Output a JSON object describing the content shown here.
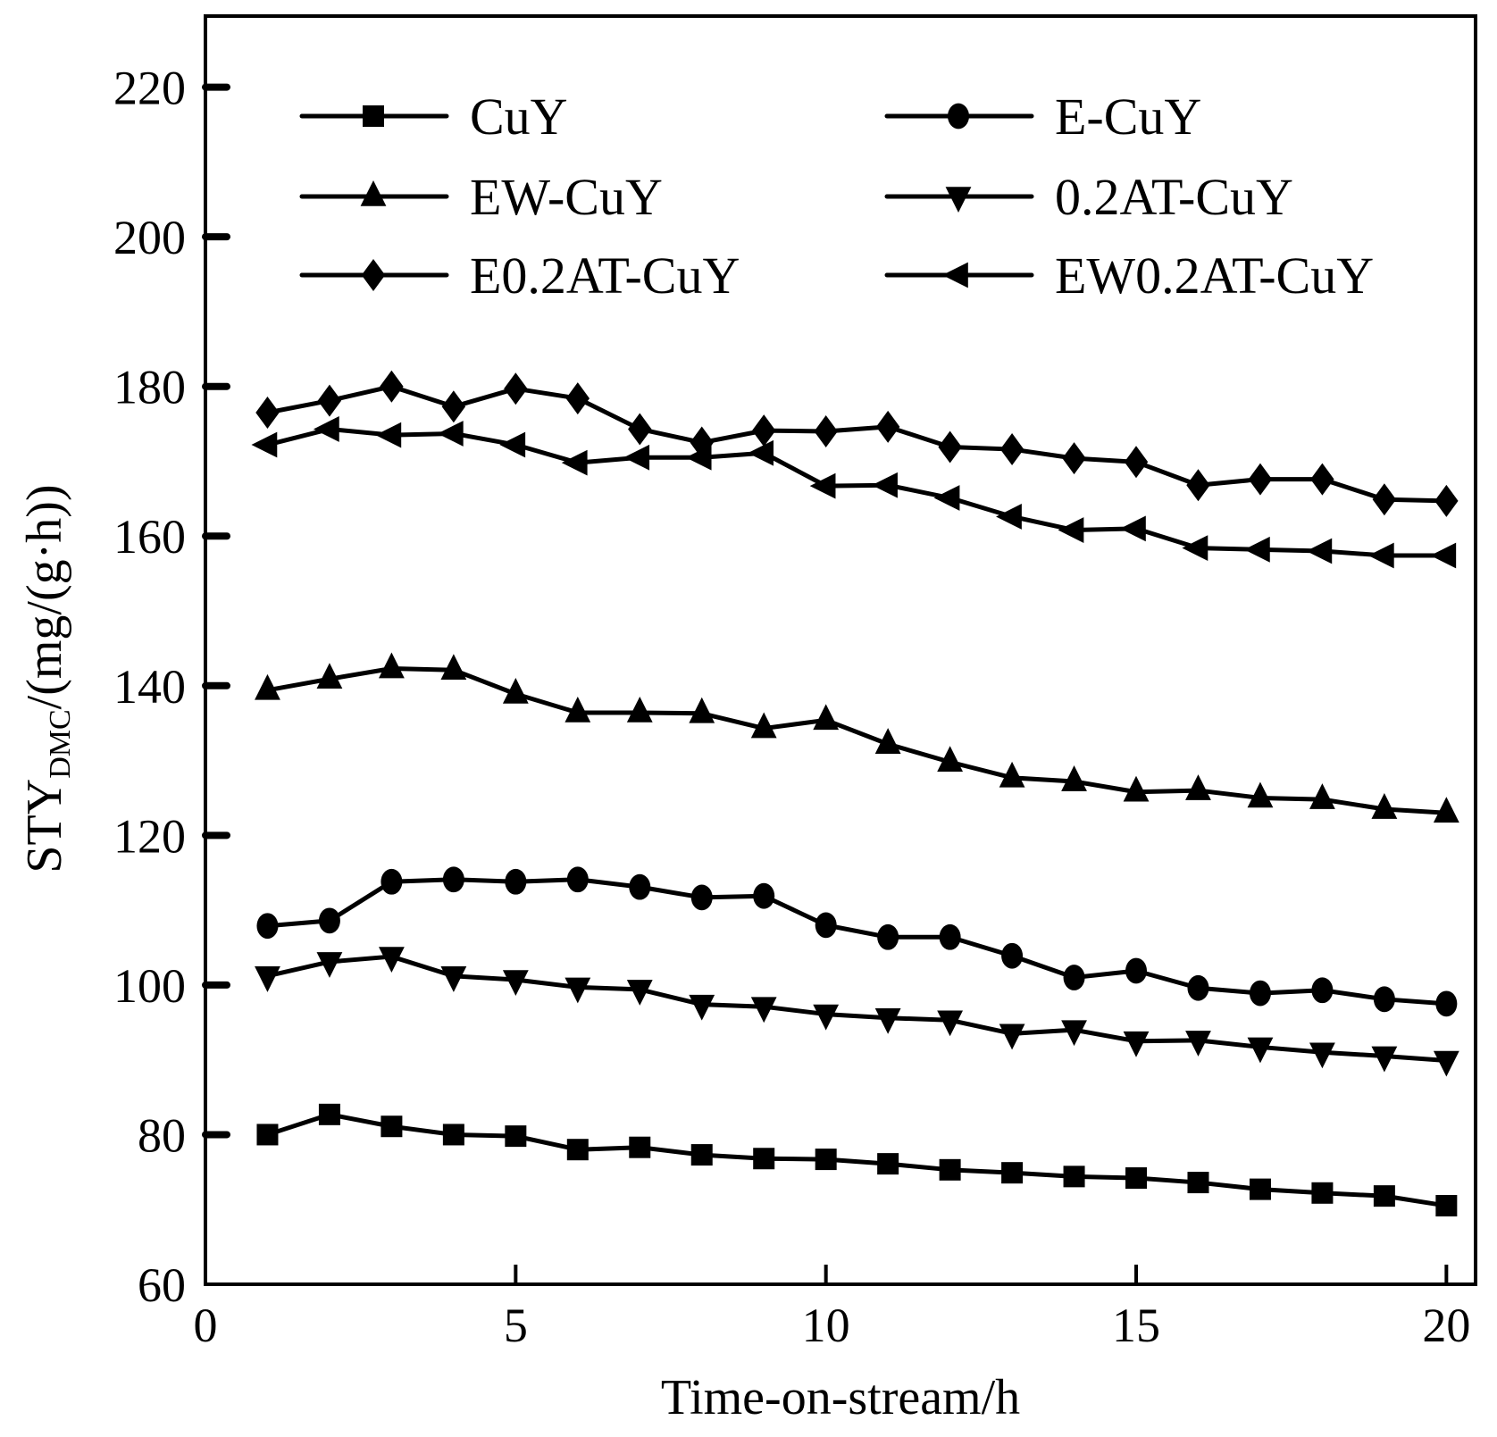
{
  "chart_data": {
    "type": "line",
    "title": "",
    "xlabel": "Time-on-stream/h",
    "ylabel": {
      "main": "STY",
      "subscript": "DMC",
      "suffix": "/(mg/(g·h))"
    },
    "xlim": [
      0,
      20.47
    ],
    "ylim": [
      60,
      229.5
    ],
    "xticks": [
      0,
      5,
      10,
      15,
      20
    ],
    "yticks": [
      60,
      80,
      100,
      120,
      140,
      160,
      180,
      200,
      220
    ],
    "xtick_labels": [
      "0",
      "5",
      "10",
      "15",
      "20"
    ],
    "ytick_labels": [
      "60",
      "80",
      "100",
      "120",
      "140",
      "160",
      "180",
      "200",
      "220"
    ],
    "grid": false,
    "legend_position": "top-inside, two columns",
    "x": [
      1,
      2,
      3,
      4,
      5,
      6,
      7,
      8,
      9,
      10,
      11,
      12,
      13,
      14,
      15,
      16,
      17,
      18,
      19,
      20
    ],
    "series": [
      {
        "name": "CuY",
        "marker": "square",
        "color": "#000000",
        "values": [
          80.0,
          82.7,
          81.1,
          80.0,
          79.8,
          78.0,
          78.3,
          77.3,
          76.8,
          76.7,
          76.1,
          75.3,
          74.9,
          74.4,
          74.2,
          73.6,
          72.7,
          72.2,
          71.8,
          70.5
        ]
      },
      {
        "name": "E-CuY",
        "marker": "circle",
        "color": "#000000",
        "values": [
          107.9,
          108.6,
          113.8,
          114.1,
          113.8,
          114.1,
          113.1,
          111.7,
          111.9,
          108.0,
          106.4,
          106.4,
          103.9,
          101.0,
          101.9,
          99.6,
          98.9,
          99.3,
          98.1,
          97.5
        ]
      },
      {
        "name": "EW-CuY",
        "marker": "triangle-up",
        "color": "#000000",
        "values": [
          139.4,
          140.9,
          142.3,
          142.1,
          138.9,
          136.4,
          136.4,
          136.3,
          134.3,
          135.4,
          132.2,
          129.8,
          127.7,
          127.2,
          125.8,
          126.0,
          125.0,
          124.8,
          123.5,
          123.0
        ]
      },
      {
        "name": "0.2AT-CuY",
        "marker": "triangle-down",
        "color": "#000000",
        "values": [
          101.2,
          103.1,
          103.8,
          101.2,
          100.7,
          99.7,
          99.4,
          97.4,
          97.1,
          96.1,
          95.6,
          95.3,
          93.5,
          94.0,
          92.5,
          92.6,
          91.7,
          91.0,
          90.5,
          89.9
        ]
      },
      {
        "name": "E0.2AT-CuY",
        "marker": "diamond",
        "color": "#000000",
        "values": [
          176.5,
          178.1,
          180.0,
          177.3,
          179.7,
          178.4,
          174.3,
          172.5,
          174.1,
          174.0,
          174.6,
          171.9,
          171.6,
          170.4,
          169.9,
          166.8,
          167.6,
          167.6,
          164.9,
          164.7
        ]
      },
      {
        "name": "EW0.2AT-CuY",
        "marker": "triangle-left",
        "color": "#000000",
        "values": [
          172.2,
          174.3,
          173.5,
          173.7,
          172.2,
          169.8,
          170.5,
          170.5,
          171.1,
          166.7,
          166.8,
          165.1,
          162.6,
          160.8,
          161.0,
          158.4,
          158.2,
          158.0,
          157.4,
          157.4
        ]
      }
    ]
  }
}
